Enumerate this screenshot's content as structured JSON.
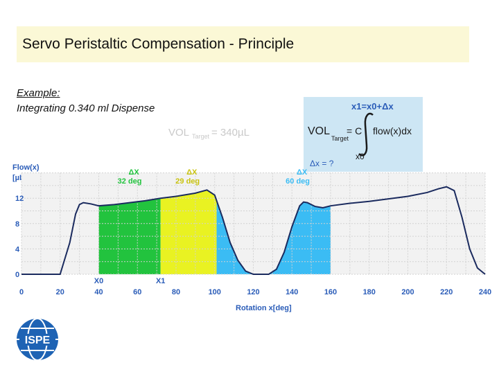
{
  "slide": {
    "title": "Servo Peristaltic Compensation - Principle",
    "example_heading": "Example:",
    "example_text": "Integrating 0.340 ml Dispense"
  },
  "formula": {
    "upper_limit": "x1=x0+Δx",
    "lhs": "VOL",
    "lhs_sub": "Target",
    "equals": "= C",
    "integrand": "flow(x)dx",
    "lower_limit": "x0",
    "question": "Δx = ?"
  },
  "target_label": {
    "main": "VOL",
    "sub": "Target",
    "value": "= 340µL"
  },
  "logo_text": "ISPE",
  "colors": {
    "green": "#22c33e",
    "yellow": "#e9f222",
    "blue": "#3bbcf4",
    "curve": "#1a2a5e",
    "axis_label": "#2a5cb8"
  },
  "chart_data": {
    "type": "area",
    "ylabel_line1": "Flow(x)",
    "ylabel_line2": "[µL/deg]",
    "xlabel": "Rotation x[deg]",
    "xlim": [
      0,
      240
    ],
    "ylim": [
      0,
      16
    ],
    "x_ticks": [
      0,
      20,
      40,
      60,
      80,
      100,
      120,
      140,
      160,
      180,
      200,
      220,
      240
    ],
    "y_ticks": [
      0,
      4,
      8,
      12
    ],
    "grid": true,
    "curve": {
      "x": [
        0,
        20,
        25,
        28,
        30,
        32,
        36,
        40,
        48,
        56,
        64,
        72,
        80,
        90,
        96,
        100,
        104,
        108,
        112,
        116,
        120,
        124,
        128,
        132,
        136,
        140,
        144,
        146,
        148,
        152,
        156,
        160,
        170,
        180,
        190,
        200,
        210,
        216,
        220,
        224,
        228,
        232,
        236,
        240
      ],
      "y": [
        0,
        0,
        5,
        9.5,
        11,
        11.3,
        11.1,
        10.8,
        11,
        11.3,
        11.6,
        12,
        12.3,
        12.8,
        13.3,
        12.5,
        9,
        5,
        2.2,
        0.5,
        0,
        0,
        0,
        0.8,
        3.5,
        7.5,
        10.8,
        11.4,
        11.3,
        10.7,
        10.5,
        10.8,
        11.2,
        11.5,
        11.9,
        12.3,
        12.9,
        13.5,
        13.8,
        13.2,
        9,
        4,
        1,
        0
      ]
    },
    "regions": [
      {
        "name": "green",
        "from": 40,
        "to": 72
      },
      {
        "name": "yellow",
        "from": 72,
        "to": 101
      },
      {
        "name": "blue",
        "from": 101,
        "to": 120
      },
      {
        "name": "blue",
        "from": 128,
        "to": 160
      }
    ],
    "delta_labels": [
      {
        "symbol": "ΔX",
        "value": "32 deg",
        "x": 56,
        "color": "#22c33e"
      },
      {
        "symbol": "ΔX",
        "value": "29 deg",
        "x": 86,
        "color": "#c9c310"
      },
      {
        "symbol": "ΔX",
        "value": "60 deg",
        "x": 143,
        "color": "#3bbcf4"
      }
    ],
    "markers": [
      {
        "label": "X0",
        "x": 40
      },
      {
        "label": "X1",
        "x": 72
      }
    ]
  }
}
